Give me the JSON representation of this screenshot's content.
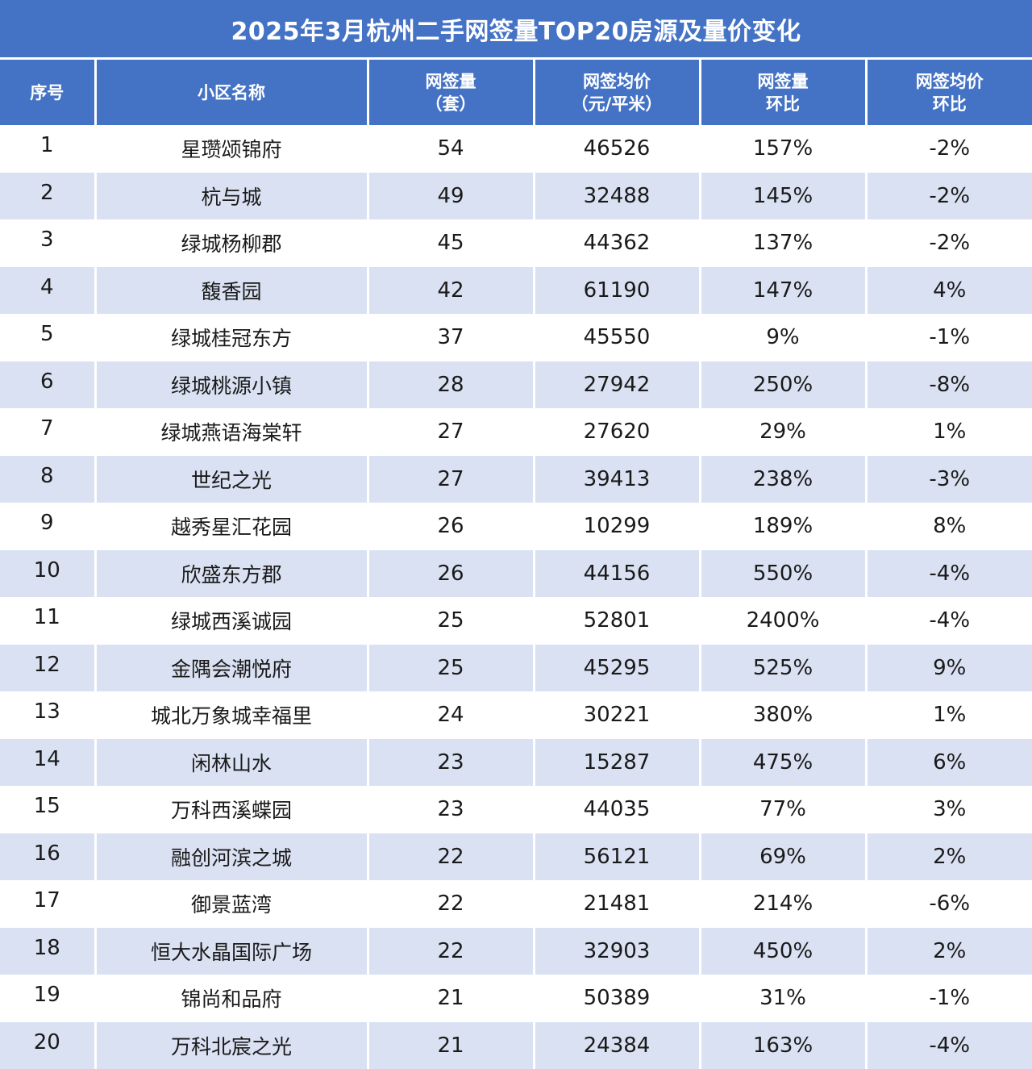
{
  "title": "2025年3月杭州二手网签量TOP20房源及量价变化",
  "headers": {
    "rank": "序号",
    "name": "小区名称",
    "volume_l1": "网签量",
    "volume_l2": "（套）",
    "price_l1": "网签均价",
    "price_l2": "（元/平米）",
    "vol_change_l1": "网签量",
    "vol_change_l2": "环比",
    "price_change_l1": "网签均价",
    "price_change_l2": "环比"
  },
  "rows": [
    {
      "rank": "1",
      "name": "星瓒颂锦府",
      "volume": "54",
      "price": "46526",
      "vol_change": "157%",
      "price_change": "-2%"
    },
    {
      "rank": "2",
      "name": "杭与城",
      "volume": "49",
      "price": "32488",
      "vol_change": "145%",
      "price_change": "-2%"
    },
    {
      "rank": "3",
      "name": "绿城杨柳郡",
      "volume": "45",
      "price": "44362",
      "vol_change": "137%",
      "price_change": "-2%"
    },
    {
      "rank": "4",
      "name": "馥香园",
      "volume": "42",
      "price": "61190",
      "vol_change": "147%",
      "price_change": "4%"
    },
    {
      "rank": "5",
      "name": "绿城桂冠东方",
      "volume": "37",
      "price": "45550",
      "vol_change": "9%",
      "price_change": "-1%"
    },
    {
      "rank": "6",
      "name": "绿城桃源小镇",
      "volume": "28",
      "price": "27942",
      "vol_change": "250%",
      "price_change": "-8%"
    },
    {
      "rank": "7",
      "name": "绿城燕语海棠轩",
      "volume": "27",
      "price": "27620",
      "vol_change": "29%",
      "price_change": "1%"
    },
    {
      "rank": "8",
      "name": "世纪之光",
      "volume": "27",
      "price": "39413",
      "vol_change": "238%",
      "price_change": "-3%"
    },
    {
      "rank": "9",
      "name": "越秀星汇花园",
      "volume": "26",
      "price": "10299",
      "vol_change": "189%",
      "price_change": "8%"
    },
    {
      "rank": "10",
      "name": "欣盛东方郡",
      "volume": "26",
      "price": "44156",
      "vol_change": "550%",
      "price_change": "-4%"
    },
    {
      "rank": "11",
      "name": "绿城西溪诚园",
      "volume": "25",
      "price": "52801",
      "vol_change": "2400%",
      "price_change": "-4%"
    },
    {
      "rank": "12",
      "name": "金隅会潮悦府",
      "volume": "25",
      "price": "45295",
      "vol_change": "525%",
      "price_change": "9%"
    },
    {
      "rank": "13",
      "name": "城北万象城幸福里",
      "volume": "24",
      "price": "30221",
      "vol_change": "380%",
      "price_change": "1%"
    },
    {
      "rank": "14",
      "name": "闲林山水",
      "volume": "23",
      "price": "15287",
      "vol_change": "475%",
      "price_change": "6%"
    },
    {
      "rank": "15",
      "name": "万科西溪蝶园",
      "volume": "23",
      "price": "44035",
      "vol_change": "77%",
      "price_change": "3%"
    },
    {
      "rank": "16",
      "name": "融创河滨之城",
      "volume": "22",
      "price": "56121",
      "vol_change": "69%",
      "price_change": "2%"
    },
    {
      "rank": "17",
      "name": "御景蓝湾",
      "volume": "22",
      "price": "21481",
      "vol_change": "214%",
      "price_change": "-6%"
    },
    {
      "rank": "18",
      "name": "恒大水晶国际广场",
      "volume": "22",
      "price": "32903",
      "vol_change": "450%",
      "price_change": "2%"
    },
    {
      "rank": "19",
      "name": "锦尚和品府",
      "volume": "21",
      "price": "50389",
      "vol_change": "31%",
      "price_change": "-1%"
    },
    {
      "rank": "20",
      "name": "万科北宸之光",
      "volume": "21",
      "price": "24384",
      "vol_change": "163%",
      "price_change": "-4%"
    }
  ],
  "colors": {
    "header_bg": "#4472c4",
    "stripe_bg": "#d9e1f2",
    "header_text": "#ffffff"
  }
}
